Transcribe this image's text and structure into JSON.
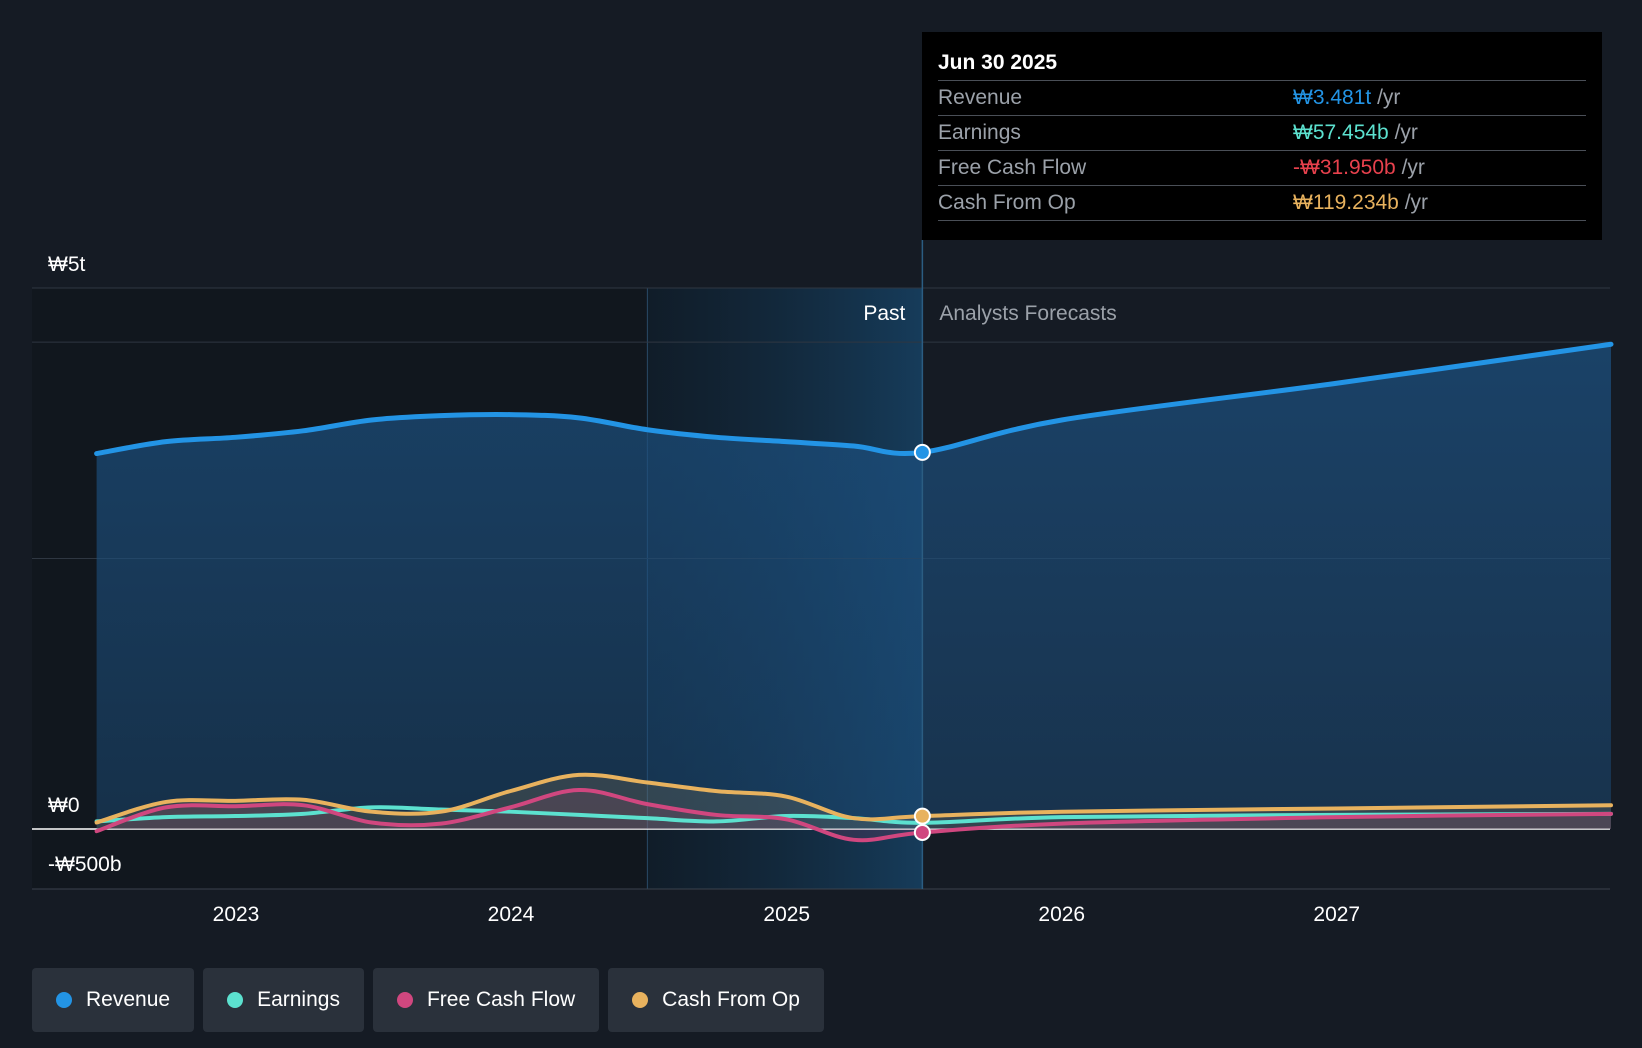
{
  "tooltip": {
    "date": "Jun 30 2025",
    "rows": [
      {
        "label": "Revenue",
        "value": "₩3.481t",
        "unit": "/yr",
        "color": "#2394e5"
      },
      {
        "label": "Earnings",
        "value": "₩57.454b",
        "unit": "/yr",
        "color": "#5ce1cf"
      },
      {
        "label": "Free Cash Flow",
        "value": "-₩31.950b",
        "unit": "/yr",
        "color": "#e8414d"
      },
      {
        "label": "Cash From Op",
        "value": "₩119.234b",
        "unit": "/yr",
        "color": "#e8b25e"
      }
    ]
  },
  "regions": {
    "past_label": "Past",
    "forecast_label": "Analysts Forecasts"
  },
  "legend": [
    {
      "label": "Revenue",
      "color": "#2394e5"
    },
    {
      "label": "Earnings",
      "color": "#5ce1cf"
    },
    {
      "label": "Free Cash Flow",
      "color": "#d0477f"
    },
    {
      "label": "Cash From Op",
      "color": "#e8b25e"
    }
  ],
  "chart_data": {
    "type": "line",
    "x_ticks": [
      "2023",
      "2024",
      "2025",
      "2026",
      "2027"
    ],
    "y_ticks": [
      "₩5t",
      "₩0",
      "-₩500b"
    ],
    "ylim": [
      -500,
      5000
    ],
    "y_unit": "₩b",
    "grid": true,
    "past_end": "2025-06-30",
    "highlight_start": "2024-06-30",
    "series": [
      {
        "name": "Revenue",
        "color": "#2394e5",
        "area": true,
        "points": [
          [
            "2022-06-30",
            3470
          ],
          [
            "2022-09-30",
            3580
          ],
          [
            "2022-12-31",
            3620
          ],
          [
            "2023-03-31",
            3680
          ],
          [
            "2023-06-30",
            3780
          ],
          [
            "2023-09-30",
            3820
          ],
          [
            "2023-12-31",
            3830
          ],
          [
            "2024-03-31",
            3800
          ],
          [
            "2024-06-30",
            3690
          ],
          [
            "2024-09-30",
            3620
          ],
          [
            "2024-12-31",
            3580
          ],
          [
            "2025-03-31",
            3540
          ],
          [
            "2025-06-30",
            3481
          ],
          [
            "2026-01-01",
            3780
          ],
          [
            "2027-01-01",
            4120
          ],
          [
            "2027-12-31",
            4480
          ]
        ]
      },
      {
        "name": "Earnings",
        "color": "#5ce1cf",
        "area": false,
        "points": [
          [
            "2022-06-30",
            70
          ],
          [
            "2022-09-30",
            110
          ],
          [
            "2022-12-31",
            120
          ],
          [
            "2023-03-31",
            140
          ],
          [
            "2023-06-30",
            200
          ],
          [
            "2023-09-30",
            180
          ],
          [
            "2023-12-31",
            160
          ],
          [
            "2024-03-31",
            130
          ],
          [
            "2024-06-30",
            100
          ],
          [
            "2024-09-30",
            70
          ],
          [
            "2024-12-31",
            120
          ],
          [
            "2025-03-31",
            100
          ],
          [
            "2025-06-30",
            57
          ],
          [
            "2026-01-01",
            110
          ],
          [
            "2027-01-01",
            130
          ],
          [
            "2027-12-31",
            140
          ]
        ]
      },
      {
        "name": "Free Cash Flow",
        "color": "#d0477f",
        "area": true,
        "points": [
          [
            "2022-06-30",
            -20
          ],
          [
            "2022-09-30",
            200
          ],
          [
            "2022-12-31",
            210
          ],
          [
            "2023-03-31",
            220
          ],
          [
            "2023-06-30",
            60
          ],
          [
            "2023-09-30",
            50
          ],
          [
            "2023-12-31",
            200
          ],
          [
            "2024-03-31",
            360
          ],
          [
            "2024-06-30",
            230
          ],
          [
            "2024-09-30",
            130
          ],
          [
            "2024-12-31",
            90
          ],
          [
            "2025-03-31",
            -100
          ],
          [
            "2025-06-30",
            -32
          ],
          [
            "2026-01-01",
            50
          ],
          [
            "2027-01-01",
            110
          ],
          [
            "2027-12-31",
            140
          ]
        ]
      },
      {
        "name": "Cash From Op",
        "color": "#e8b25e",
        "area": true,
        "points": [
          [
            "2022-06-30",
            60
          ],
          [
            "2022-09-30",
            250
          ],
          [
            "2022-12-31",
            260
          ],
          [
            "2023-03-31",
            270
          ],
          [
            "2023-06-30",
            160
          ],
          [
            "2023-09-30",
            160
          ],
          [
            "2023-12-31",
            350
          ],
          [
            "2024-03-31",
            500
          ],
          [
            "2024-06-30",
            430
          ],
          [
            "2024-09-30",
            350
          ],
          [
            "2024-12-31",
            300
          ],
          [
            "2025-03-31",
            100
          ],
          [
            "2025-06-30",
            119
          ],
          [
            "2026-01-01",
            160
          ],
          [
            "2027-01-01",
            190
          ],
          [
            "2027-12-31",
            220
          ]
        ]
      }
    ]
  }
}
